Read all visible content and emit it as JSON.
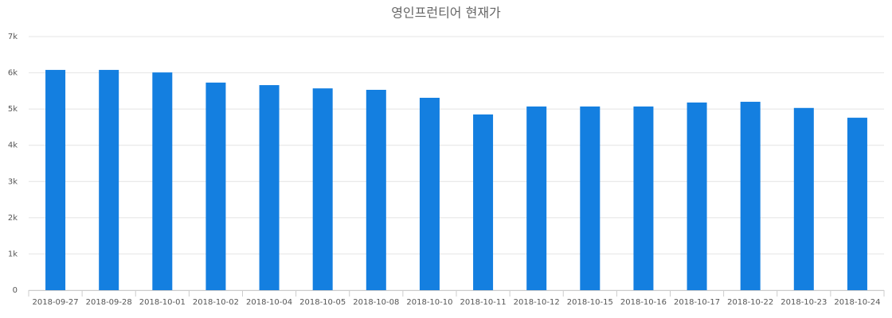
{
  "chart_data": {
    "type": "bar",
    "title": "영인프런티어 현재가",
    "categories": [
      "2018-09-27",
      "2018-09-28",
      "2018-10-01",
      "2018-10-02",
      "2018-10-04",
      "2018-10-05",
      "2018-10-08",
      "2018-10-10",
      "2018-10-11",
      "2018-10-12",
      "2018-10-15",
      "2018-10-16",
      "2018-10-17",
      "2018-10-22",
      "2018-10-23",
      "2018-10-24"
    ],
    "values": [
      6080,
      6080,
      6010,
      5730,
      5660,
      5570,
      5530,
      5310,
      4850,
      5070,
      5070,
      5070,
      5180,
      5200,
      5030,
      4760
    ],
    "color": "#147fe0",
    "ylim": [
      0,
      7000
    ],
    "yticks": [
      0,
      {
        "value": 1000,
        "label": "1k"
      },
      {
        "value": 2000,
        "label": "2k"
      },
      {
        "value": 3000,
        "label": "3k"
      },
      {
        "value": 4000,
        "label": "4k"
      },
      {
        "value": 5000,
        "label": "5k"
      },
      {
        "value": 6000,
        "label": "6k"
      },
      {
        "value": 7000,
        "label": "7k"
      }
    ],
    "grid": true
  }
}
